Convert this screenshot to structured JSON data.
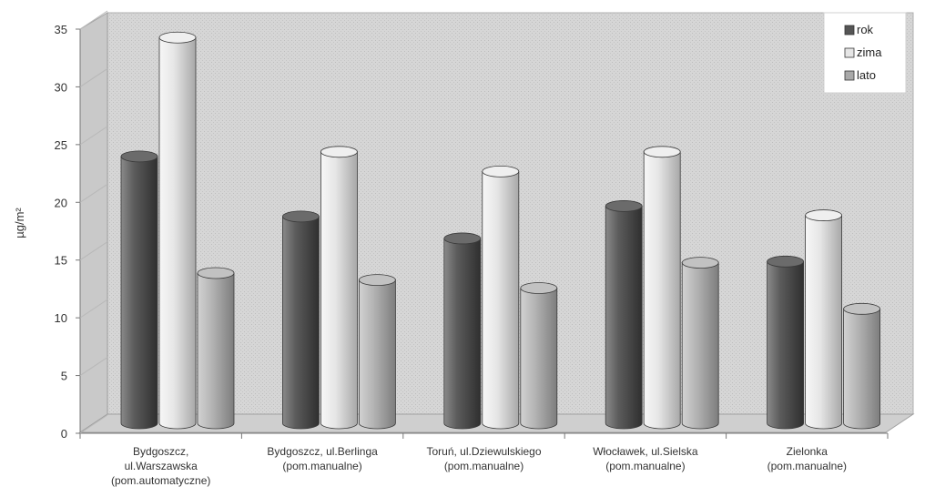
{
  "chart_data": {
    "type": "bar",
    "title": "",
    "ylabel": "µg/m²",
    "xlabel": "",
    "ylim": [
      0,
      35
    ],
    "yticks": [
      0,
      5,
      10,
      15,
      20,
      25,
      30,
      35
    ],
    "grid": false,
    "legend_position": "top-right",
    "categories": [
      [
        "Bydgoszcz,",
        "ul.Warszawska",
        "(pom.automatyczne)"
      ],
      [
        "Bydgoszcz, ul.Berlinga",
        "(pom.manualne)"
      ],
      [
        "Toruń, ul.Dziewulskiego",
        "(pom.manualne)"
      ],
      [
        "Włocławek, ul.Sielska",
        "(pom.manualne)"
      ],
      [
        "Zielonka",
        "(pom.manualne)"
      ]
    ],
    "series": [
      {
        "name": "rok",
        "values": [
          23.5,
          18.3,
          16.4,
          19.2,
          14.4
        ],
        "color": "#5a5a5a"
      },
      {
        "name": "zima",
        "values": [
          33.8,
          23.9,
          22.2,
          23.9,
          18.4
        ],
        "color": "#dcdcdc"
      },
      {
        "name": "lato",
        "values": [
          13.4,
          12.8,
          12.1,
          14.3,
          10.3
        ],
        "color": "#a9a9a9"
      }
    ]
  }
}
